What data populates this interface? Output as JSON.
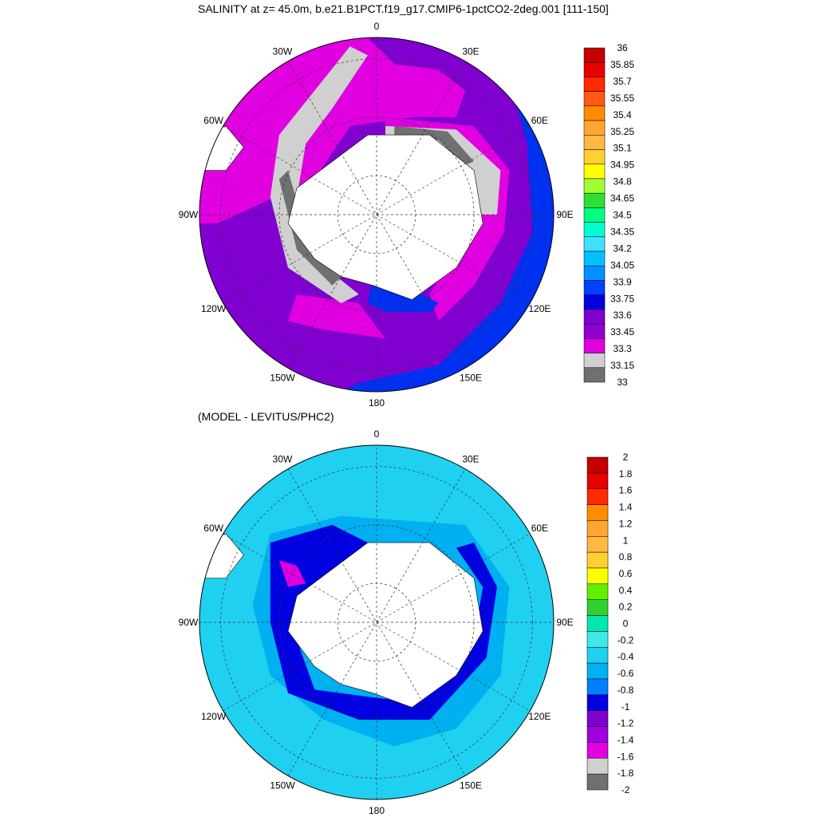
{
  "titles": {
    "top": "SALINITY at z=  45.0m, b.e21.B1PCT.f19_g17.CMIP6-1pctCO2-2deg.001 [111-150]",
    "bottom": "(MODEL - LEVITUS/PHC2)"
  },
  "longitude_labels": [
    "0",
    "30E",
    "60E",
    "90E",
    "120E",
    "150E",
    "180",
    "150W",
    "120W",
    "90W",
    "60W",
    "30W"
  ],
  "colorbar_top": {
    "levels": [
      "36",
      "35.85",
      "35.7",
      "35.55",
      "35.4",
      "35.25",
      "35.1",
      "34.95",
      "34.8",
      "34.65",
      "34.5",
      "34.35",
      "34.2",
      "34.05",
      "33.9",
      "33.75",
      "33.6",
      "33.45",
      "33.3",
      "33.15",
      "33"
    ],
    "colors": [
      "#c40000",
      "#e60000",
      "#ff2a00",
      "#ff5a10",
      "#ff8c00",
      "#ffa630",
      "#ffb840",
      "#ffd030",
      "#ffff00",
      "#a0ff30",
      "#30e030",
      "#00ff80",
      "#00ffd0",
      "#40e0ff",
      "#00c0ff",
      "#0090ff",
      "#0040ff",
      "#0000e0",
      "#8000d0",
      "#9000d0",
      "#e000e0",
      "#d0d0d0",
      "#707070"
    ]
  },
  "colorbar_bottom": {
    "levels": [
      "2",
      "1.8",
      "1.6",
      "1.4",
      "1.2",
      "1",
      "0.8",
      "0.6",
      "0.4",
      "0.2",
      "0",
      "-0.2",
      "-0.4",
      "-0.6",
      "-0.8",
      "-1",
      "-1.2",
      "-1.4",
      "-1.6",
      "-1.8",
      "-2"
    ],
    "colors": [
      "#c40000",
      "#e60000",
      "#ff2a00",
      "#ff8c00",
      "#ffa630",
      "#ffb840",
      "#ffd030",
      "#ffff00",
      "#60f000",
      "#30d030",
      "#00e8b0",
      "#40e8e8",
      "#20d0f0",
      "#00b0f0",
      "#0080ff",
      "#0000e0",
      "#8000d0",
      "#a000e0",
      "#e000e0",
      "#d0d0d0",
      "#707070"
    ]
  },
  "map_colors": {
    "ocean_top": "#8000d0",
    "magenta": "#e000e0",
    "blue": "#0030f0",
    "gray": "#d0d0d0",
    "darkgray": "#707070",
    "ocean_bottom": "#20d0f0",
    "mid_blue": "#00b0f0",
    "deep_blue": "#0000e0",
    "land": "#ffffff"
  }
}
